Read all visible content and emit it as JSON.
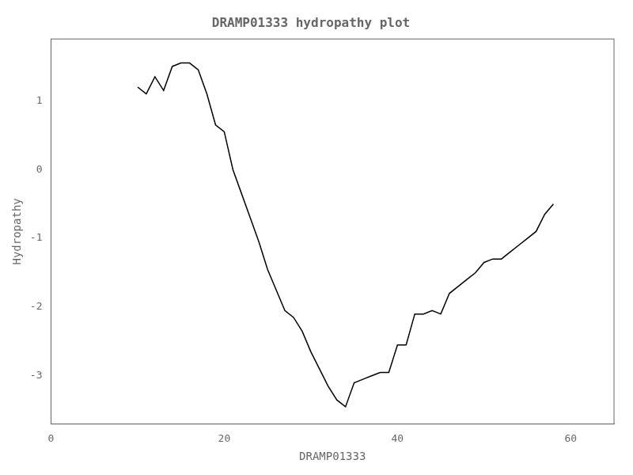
{
  "chart_data": {
    "type": "line",
    "title": "DRAMP01333 hydropathy plot",
    "xlabel": "DRAMP01333",
    "ylabel": "Hydropathy",
    "x": [
      10,
      11,
      12,
      13,
      14,
      15,
      16,
      17,
      18,
      19,
      20,
      21,
      22,
      23,
      24,
      25,
      26,
      27,
      28,
      29,
      30,
      31,
      32,
      33,
      34,
      35,
      36,
      37,
      38,
      39,
      40,
      41,
      42,
      43,
      44,
      45,
      46,
      47,
      48,
      49,
      50,
      51,
      52,
      53,
      54,
      55,
      56,
      57,
      58
    ],
    "values": [
      1.2,
      1.1,
      1.35,
      1.15,
      1.5,
      1.55,
      1.55,
      1.45,
      1.1,
      0.65,
      0.55,
      0.0,
      -0.35,
      -0.7,
      -1.05,
      -1.45,
      -1.75,
      -2.05,
      -2.15,
      -2.35,
      -2.65,
      -2.9,
      -3.15,
      -3.35,
      -3.45,
      -3.1,
      -3.05,
      -3.0,
      -2.95,
      -2.95,
      -2.55,
      -2.55,
      -2.1,
      -2.1,
      -2.05,
      -2.1,
      -1.8,
      -1.7,
      -1.6,
      -1.5,
      -1.35,
      -1.3,
      -1.3,
      -1.2,
      -1.1,
      -1.0,
      -0.9,
      -0.65,
      -0.5
    ],
    "color": "#000000",
    "xlim": [
      0,
      65
    ],
    "ylim": [
      -3.7,
      1.9
    ],
    "xticks": [
      0,
      20,
      40,
      60
    ],
    "yticks": [
      -3,
      -2,
      -1,
      0,
      1
    ],
    "grid": false
  }
}
